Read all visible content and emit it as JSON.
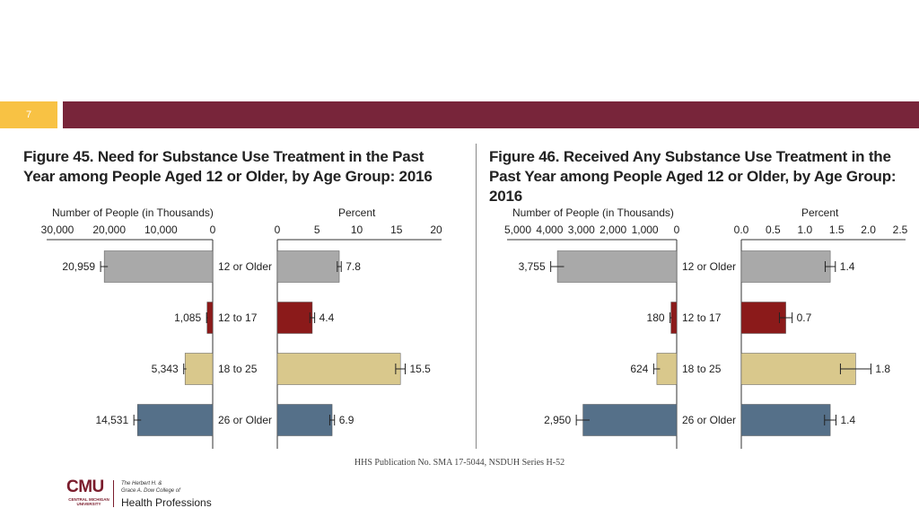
{
  "slide_number": "7",
  "credit": "HHS Publication No. SMA 17-5044, NSDUH Series H-52",
  "logo": {
    "cmu": "CMU",
    "cmu_sub": "CENTRAL MICHIGAN UNIVERSITY",
    "college_line1": "The Herbert H. &",
    "college_line2": "Grace A. Dow College of",
    "college_name": "Health Professions"
  },
  "colors": {
    "topbar_accent": "#f8c244",
    "topbar_main": "#78253a",
    "age_12_older": "#a9a9a9",
    "age_12_17": "#8b1a1a",
    "age_18_25": "#d9c88c",
    "age_26_older": "#557089"
  },
  "chart_data": [
    {
      "type": "bar",
      "orientation": "horizontal-mirrored",
      "title": "Figure 45. Need for Substance Use Treatment in the Past Year among People Aged 12 or Older, by Age Group: 2016",
      "categories": [
        "12 or Older",
        "12 to 17",
        "18 to 25",
        "26 or Older"
      ],
      "left_panel": {
        "xlabel": "Number of People (in Thousands)",
        "xlim": [
          0,
          30000
        ],
        "ticks": [
          30000,
          20000,
          10000,
          0
        ],
        "tick_labels": [
          "30,000",
          "20,000",
          "10,000",
          "0"
        ],
        "values": [
          20959,
          1085,
          5343,
          14531
        ],
        "value_labels": [
          "20,959",
          "1,085",
          "5,343",
          "14,531"
        ],
        "error": [
          700,
          100,
          260,
          700
        ]
      },
      "right_panel": {
        "xlabel": "Percent",
        "xlim": [
          0,
          20
        ],
        "ticks": [
          0,
          5,
          10,
          15,
          20
        ],
        "tick_labels": [
          "0",
          "5",
          "10",
          "15",
          "20"
        ],
        "values": [
          7.8,
          4.4,
          15.5,
          6.9
        ],
        "value_labels": [
          "7.8",
          "4.4",
          "15.5",
          "6.9"
        ],
        "error": [
          0.25,
          0.3,
          0.6,
          0.3
        ]
      }
    },
    {
      "type": "bar",
      "orientation": "horizontal-mirrored",
      "title": "Figure 46. Received Any Substance Use Treatment in the Past Year among People Aged 12 or Older, by Age Group: 2016",
      "categories": [
        "12 or Older",
        "12 to 17",
        "18 to 25",
        "26 or Older"
      ],
      "left_panel": {
        "xlabel": "Number of People (in Thousands)",
        "xlim": [
          0,
          5000
        ],
        "ticks": [
          5000,
          4000,
          3000,
          2000,
          1000,
          0
        ],
        "tick_labels": [
          "5,000",
          "4,000",
          "3,000",
          "2,000",
          "1,000",
          "0"
        ],
        "values": [
          3755,
          180,
          624,
          2950
        ],
        "value_labels": [
          "3,755",
          "180",
          "624",
          "2,950"
        ],
        "error": [
          210,
          30,
          100,
          210
        ]
      },
      "right_panel": {
        "xlabel": "Percent",
        "xlim": [
          0,
          2.5
        ],
        "ticks": [
          0,
          0.5,
          1.0,
          1.5,
          2.0,
          2.5
        ],
        "tick_labels": [
          "0.0",
          "0.5",
          "1.0",
          "1.5",
          "2.0",
          "2.5"
        ],
        "values": [
          1.4,
          0.7,
          1.8,
          1.4
        ],
        "value_labels": [
          "1.4",
          "0.7",
          "1.8",
          "1.4"
        ],
        "error": [
          0.08,
          0.1,
          0.24,
          0.09
        ]
      }
    }
  ]
}
